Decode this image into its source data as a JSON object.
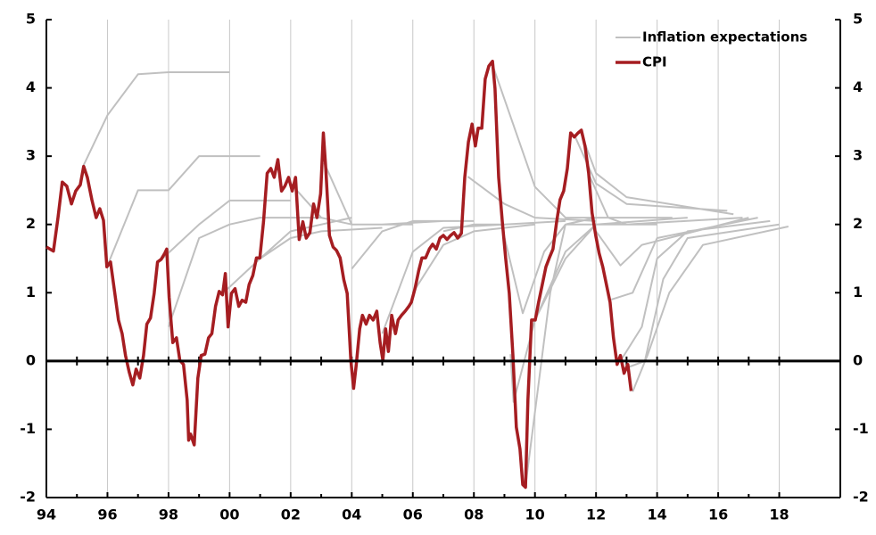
{
  "chart_data": {
    "type": "line",
    "series": [
      {
        "name": "Inflation expectations",
        "color": "#c0c0c0",
        "x": [
          1995.2,
          1996,
          1997,
          1998,
          2000,
          null,
          1996,
          1997,
          1998,
          1999,
          2001,
          null,
          1997.8,
          1999,
          2000,
          2002,
          null,
          1998,
          1999,
          2000,
          2001,
          2003,
          null,
          1999.8,
          2001,
          2002,
          2004,
          null,
          2001,
          2002,
          2003,
          2005,
          null,
          2002,
          2003,
          2004,
          2006,
          null,
          2003.1,
          2004,
          2005,
          2007,
          null,
          2004,
          2005,
          2006,
          2008,
          null,
          2005,
          2006,
          2007,
          2009,
          null,
          2006,
          2007,
          2008,
          2010,
          null,
          2007,
          2008,
          2009,
          2011,
          null,
          2007.8,
          2009,
          2010,
          2012,
          null,
          2008.6,
          2010,
          2011,
          2013,
          null,
          2008.9,
          2009.6,
          2010.3,
          2011,
          2013,
          null,
          2009.2,
          2009.3,
          2010,
          2011,
          2012,
          2014,
          null,
          2009.7,
          2010.5,
          2011,
          2012,
          2014.5,
          null,
          2010,
          2011,
          2012,
          2015,
          null,
          2011.3,
          2012,
          2013,
          2016.3,
          null,
          2011.5,
          2012,
          2013,
          2016.5,
          null,
          2011.8,
          2012.4,
          2013,
          2016.8,
          null,
          2012,
          2012.8,
          2013.5,
          2017,
          null,
          2012.5,
          2013.2,
          2014,
          2017.3,
          null,
          2012.8,
          2013.5,
          2014,
          2015,
          2017.7,
          null,
          2013,
          2013.6,
          2014.2,
          2015,
          2018,
          null,
          2013.2,
          2013.7,
          2014.4,
          2015.5,
          2018.3
        ],
        "values": [
          2.85,
          3.6,
          4.2,
          4.23,
          4.23,
          null,
          1.4,
          2.5,
          2.5,
          3.0,
          3.0,
          null,
          1.5,
          2.0,
          2.35,
          2.35,
          null,
          0.5,
          1.8,
          2.0,
          2.1,
          2.1,
          null,
          1.0,
          1.5,
          1.9,
          2.1,
          null,
          1.5,
          1.8,
          1.9,
          1.95,
          null,
          2.6,
          2.1,
          2.0,
          2.0,
          null,
          2.9,
          2.0,
          2.0,
          2.05,
          null,
          1.35,
          1.9,
          2.05,
          2.05,
          null,
          0.4,
          1.6,
          1.95,
          2.0,
          null,
          1.0,
          1.7,
          1.9,
          2.0,
          null,
          1.9,
          2.0,
          2.0,
          2.05,
          null,
          2.7,
          2.3,
          2.1,
          2.05,
          null,
          4.35,
          2.55,
          2.1,
          2.1,
          null,
          2.0,
          0.7,
          1.6,
          2.0,
          2.0,
          null,
          0.1,
          -0.6,
          0.6,
          1.6,
          2.0,
          2.0,
          null,
          -1.8,
          1.0,
          2.0,
          2.1,
          2.1,
          null,
          0.6,
          1.5,
          2.0,
          2.1,
          null,
          3.3,
          2.6,
          2.3,
          2.2,
          null,
          3.35,
          2.75,
          2.4,
          2.15,
          null,
          2.7,
          2.1,
          2.0,
          2.1,
          null,
          1.9,
          1.4,
          1.7,
          2.1,
          null,
          0.9,
          1.0,
          1.8,
          2.1,
          null,
          0.0,
          0.5,
          1.5,
          1.9,
          2.05,
          null,
          -0.1,
          0.0,
          1.2,
          1.8,
          2.0,
          null,
          -0.45,
          0.1,
          1.0,
          1.7,
          1.97
        ]
      },
      {
        "name": "CPI",
        "color": "#a51d21",
        "x": [
          1994.0,
          1994.23,
          1994.38,
          1994.52,
          1994.67,
          1994.82,
          1994.96,
          1995.11,
          1995.22,
          1995.34,
          1995.49,
          1995.63,
          1995.75,
          1995.87,
          1995.98,
          1996.1,
          1996.22,
          1996.36,
          1996.48,
          1996.59,
          1996.71,
          1996.83,
          1996.94,
          1997.06,
          1997.18,
          1997.29,
          1997.41,
          1997.53,
          1997.64,
          1997.76,
          1997.88,
          1997.94,
          1998.02,
          1998.14,
          1998.26,
          1998.37,
          1998.49,
          1998.61,
          1998.66,
          1998.72,
          1998.84,
          1998.96,
          1999.07,
          1999.19,
          1999.31,
          1999.42,
          1999.54,
          1999.66,
          1999.77,
          1999.86,
          1999.95,
          2000.06,
          2000.18,
          2000.3,
          2000.41,
          2000.53,
          2000.64,
          2000.76,
          2000.88,
          2000.99,
          2001.11,
          2001.23,
          2001.35,
          2001.46,
          2001.58,
          2001.7,
          2001.81,
          2001.93,
          2002.05,
          2002.16,
          2002.28,
          2002.4,
          2002.51,
          2002.63,
          2002.75,
          2002.86,
          2002.98,
          2003.07,
          2003.15,
          2003.27,
          2003.39,
          2003.5,
          2003.62,
          2003.74,
          2003.85,
          2003.97,
          2004.06,
          2004.15,
          2004.26,
          2004.35,
          2004.47,
          2004.58,
          2004.7,
          2004.82,
          2004.93,
          2005.02,
          2005.11,
          2005.2,
          2005.31,
          2005.43,
          2005.52,
          2005.63,
          2005.75,
          2005.87,
          2005.95,
          2006.07,
          2006.19,
          2006.3,
          2006.42,
          2006.54,
          2006.65,
          2006.77,
          2006.89,
          2007.0,
          2007.12,
          2007.24,
          2007.35,
          2007.47,
          2007.59,
          2007.7,
          2007.82,
          2007.94,
          2008.05,
          2008.14,
          2008.26,
          2008.37,
          2008.49,
          2008.61,
          2008.69,
          2008.81,
          2008.93,
          2009.04,
          2009.16,
          2009.28,
          2009.39,
          2009.51,
          2009.6,
          2009.69,
          2009.77,
          2009.89,
          2010.01,
          2010.12,
          2010.24,
          2010.36,
          2010.47,
          2010.59,
          2010.71,
          2010.82,
          2010.94,
          2011.06,
          2011.17,
          2011.29,
          2011.41,
          2011.52,
          2011.64,
          2011.76,
          2011.87,
          2011.99,
          2012.1,
          2012.22,
          2012.34,
          2012.46,
          2012.57,
          2012.69,
          2012.8,
          2012.92,
          2013.04,
          2013.15
        ],
        "values": [
          1.67,
          1.61,
          2.1,
          2.62,
          2.56,
          2.3,
          2.49,
          2.58,
          2.85,
          2.69,
          2.36,
          2.1,
          2.23,
          2.06,
          1.38,
          1.45,
          1.06,
          0.6,
          0.4,
          0.08,
          -0.16,
          -0.35,
          -0.12,
          -0.25,
          0.08,
          0.54,
          0.63,
          0.99,
          1.45,
          1.49,
          1.58,
          1.64,
          0.93,
          0.27,
          0.34,
          0.01,
          -0.05,
          -0.57,
          -1.16,
          -1.07,
          -1.23,
          -0.25,
          0.08,
          0.1,
          0.34,
          0.4,
          0.8,
          1.02,
          0.97,
          1.28,
          0.5,
          0.99,
          1.06,
          0.8,
          0.89,
          0.86,
          1.12,
          1.25,
          1.51,
          1.51,
          2.04,
          2.75,
          2.82,
          2.69,
          2.95,
          2.49,
          2.56,
          2.69,
          2.49,
          2.69,
          1.78,
          2.04,
          1.8,
          1.88,
          2.3,
          2.1,
          2.45,
          3.34,
          2.82,
          1.84,
          1.67,
          1.62,
          1.51,
          1.19,
          0.99,
          0.01,
          -0.4,
          -0.05,
          0.47,
          0.67,
          0.54,
          0.67,
          0.6,
          0.73,
          0.27,
          0.01,
          0.47,
          0.14,
          0.67,
          0.4,
          0.6,
          0.67,
          0.73,
          0.8,
          0.86,
          1.06,
          1.32,
          1.51,
          1.51,
          1.64,
          1.71,
          1.64,
          1.8,
          1.84,
          1.78,
          1.84,
          1.88,
          1.8,
          1.87,
          2.69,
          3.21,
          3.47,
          3.15,
          3.41,
          3.41,
          4.13,
          4.32,
          4.39,
          3.99,
          2.69,
          2.04,
          1.51,
          0.99,
          0.08,
          -0.97,
          -1.29,
          -1.81,
          -1.85,
          -0.57,
          0.6,
          0.6,
          0.86,
          1.12,
          1.38,
          1.51,
          1.64,
          2.04,
          2.36,
          2.49,
          2.82,
          3.34,
          3.28,
          3.34,
          3.38,
          3.15,
          2.75,
          2.17,
          1.84,
          1.58,
          1.38,
          1.12,
          0.86,
          0.34,
          -0.05,
          0.08,
          -0.18,
          -0.05,
          -0.44
        ]
      }
    ],
    "xlim": [
      1994,
      2020
    ],
    "xticks": [
      {
        "value": 1994,
        "label": "94"
      },
      {
        "value": 1996,
        "label": "96"
      },
      {
        "value": 1998,
        "label": "98"
      },
      {
        "value": 2000,
        "label": "00"
      },
      {
        "value": 2002,
        "label": "02"
      },
      {
        "value": 2004,
        "label": "04"
      },
      {
        "value": 2006,
        "label": "06"
      },
      {
        "value": 2008,
        "label": "08"
      },
      {
        "value": 2010,
        "label": "10"
      },
      {
        "value": 2012,
        "label": "12"
      },
      {
        "value": 2014,
        "label": "14"
      },
      {
        "value": 2016,
        "label": "16"
      },
      {
        "value": 2018,
        "label": "18"
      }
    ],
    "ylim": [
      -2,
      5
    ],
    "yticks": [
      -2,
      -1,
      0,
      1,
      2,
      3,
      4,
      5
    ],
    "y2lim": [
      -2,
      5
    ],
    "y2ticks": [
      -2,
      -1,
      0,
      1,
      2,
      3,
      4,
      5
    ],
    "grid": "x",
    "legend": "upper right"
  }
}
